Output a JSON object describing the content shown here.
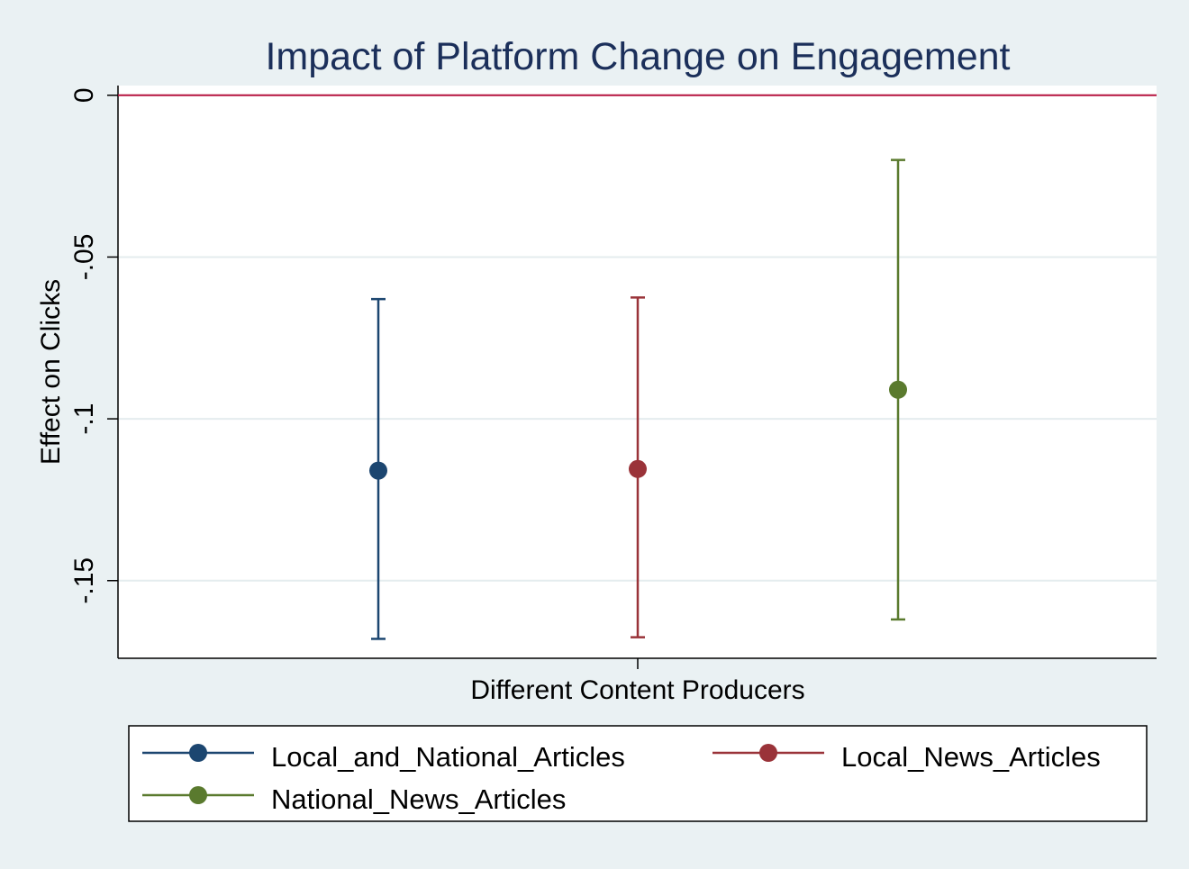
{
  "chart_data": {
    "type": "scatter",
    "title": "Impact of Platform Change on Engagement",
    "xlabel": "Different Content Producers",
    "ylabel": "Effect on Clicks",
    "ylim": [
      -0.174,
      0.003
    ],
    "yticks": [
      0,
      -0.05,
      -0.1,
      -0.15
    ],
    "ytick_labels": [
      "0",
      "-.05",
      "-.1",
      "-.15"
    ],
    "reference_line": {
      "y": 0,
      "color": "#b5123e"
    },
    "grid": true,
    "legend_position": "bottom",
    "colors": {
      "background": "#eaf1f3",
      "plot_background": "#ffffff",
      "gridline": "#e4ecee",
      "title": "#1b2f5a"
    },
    "series": [
      {
        "name": "Local_and_National_Articles",
        "estimate": -0.116,
        "ci_low": -0.168,
        "ci_high": -0.063,
        "color": "#1c4670"
      },
      {
        "name": "Local_News_Articles",
        "estimate": -0.1155,
        "ci_low": -0.1675,
        "ci_high": -0.0625,
        "color": "#9a3339"
      },
      {
        "name": "National_News_Articles",
        "estimate": -0.091,
        "ci_low": -0.162,
        "ci_high": -0.02,
        "color": "#5a7a2e"
      }
    ]
  }
}
